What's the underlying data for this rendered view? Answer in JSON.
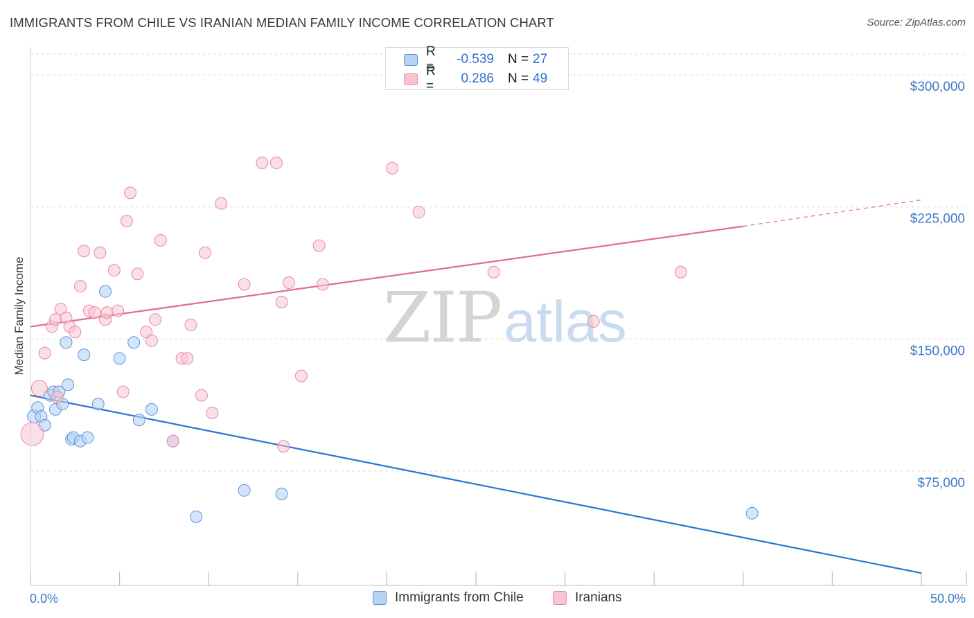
{
  "title": "IMMIGRANTS FROM CHILE VS IRANIAN MEDIAN FAMILY INCOME CORRELATION CHART",
  "source": "Source: ZipAtlas.com",
  "watermark": {
    "zip": "ZIP",
    "atlas": "atlas"
  },
  "legend_top": [
    {
      "r_label": "R =",
      "r_value": "-0.539",
      "n_label": "N =",
      "n_value": "27"
    },
    {
      "r_label": "R =",
      "r_value": "0.286",
      "n_label": "N =",
      "n_value": "49"
    }
  ],
  "colors": {
    "chile_fill": "#b9d3f5",
    "chile_stroke": "#5a93dc",
    "chile_line": "#2a72d5",
    "iran_fill": "#f8c4d3",
    "iran_stroke": "#e8889f",
    "iran_line": "#e06c92",
    "grid": "#d9d9d9",
    "tick_label": "#3a78c9"
  },
  "chart_data": {
    "type": "scatter",
    "title": "IMMIGRANTS FROM CHILE VS IRANIAN MEDIAN FAMILY INCOME CORRELATION CHART",
    "xlabel": "",
    "ylabel": "Median Family Income",
    "xlim": [
      0,
      50
    ],
    "ylim": [
      10000,
      315000
    ],
    "x_tick_labels": [
      "0.0%",
      "50.0%"
    ],
    "y_ticks": [
      75000,
      150000,
      225000,
      300000
    ],
    "y_tick_labels": [
      "$75,000",
      "$150,000",
      "$225,000",
      "$300,000"
    ],
    "grid": "horizontal dashed",
    "legend_position": "bottom-center",
    "series": [
      {
        "name": "Immigrants from Chile",
        "r": -0.539,
        "n": 27,
        "trend": {
          "x0": 0,
          "y0": 118000,
          "x1": 50,
          "y1": 17000
        },
        "points": [
          [
            0.2,
            106000,
            16
          ],
          [
            0.4,
            111000,
            14
          ],
          [
            0.6,
            106000,
            14
          ],
          [
            0.8,
            101000,
            14
          ],
          [
            1.1,
            118000,
            14
          ],
          [
            1.3,
            120000,
            14
          ],
          [
            1.4,
            110000,
            14
          ],
          [
            1.6,
            120000,
            14
          ],
          [
            1.8,
            113000,
            14
          ],
          [
            2.0,
            148000,
            14
          ],
          [
            2.1,
            124000,
            14
          ],
          [
            2.3,
            93000,
            14
          ],
          [
            2.4,
            94000,
            14
          ],
          [
            2.8,
            92000,
            14
          ],
          [
            3.2,
            94000,
            14
          ],
          [
            3.8,
            113000,
            14
          ],
          [
            4.2,
            177000,
            14
          ],
          [
            5.0,
            139000,
            14
          ],
          [
            5.8,
            148000,
            14
          ],
          [
            6.1,
            104000,
            14
          ],
          [
            6.8,
            110000,
            14
          ],
          [
            8.0,
            92000,
            14
          ],
          [
            9.3,
            49000,
            14
          ],
          [
            12.0,
            64000,
            14
          ],
          [
            14.1,
            62000,
            14
          ],
          [
            40.5,
            51000,
            14
          ],
          [
            3.0,
            141000,
            14
          ]
        ]
      },
      {
        "name": "Iranians",
        "r": 0.286,
        "n": 49,
        "trend": {
          "x0": 0,
          "y0": 157000,
          "x1": 40,
          "y1": 214000,
          "dash_x1": 50,
          "dash_y1": 229000
        },
        "points": [
          [
            0.1,
            96000,
            30
          ],
          [
            0.5,
            122000,
            20
          ],
          [
            0.8,
            142000,
            14
          ],
          [
            1.2,
            157000,
            14
          ],
          [
            1.4,
            161000,
            14
          ],
          [
            1.5,
            117000,
            14
          ],
          [
            1.7,
            167000,
            14
          ],
          [
            2.0,
            162000,
            14
          ],
          [
            2.2,
            157000,
            14
          ],
          [
            2.5,
            154000,
            14
          ],
          [
            2.8,
            180000,
            14
          ],
          [
            3.0,
            200000,
            14
          ],
          [
            3.3,
            166000,
            14
          ],
          [
            3.6,
            165000,
            14
          ],
          [
            3.9,
            199000,
            14
          ],
          [
            4.2,
            161000,
            14
          ],
          [
            4.3,
            165000,
            14
          ],
          [
            4.7,
            189000,
            14
          ],
          [
            4.9,
            166000,
            14
          ],
          [
            5.2,
            120000,
            14
          ],
          [
            5.4,
            217000,
            14
          ],
          [
            5.6,
            233000,
            14
          ],
          [
            6.0,
            187000,
            14
          ],
          [
            6.5,
            154000,
            14
          ],
          [
            6.8,
            149000,
            14
          ],
          [
            7.0,
            161000,
            14
          ],
          [
            7.3,
            206000,
            14
          ],
          [
            8.0,
            92000,
            14
          ],
          [
            8.5,
            139000,
            14
          ],
          [
            8.8,
            139000,
            14
          ],
          [
            9.0,
            158000,
            14
          ],
          [
            9.6,
            118000,
            14
          ],
          [
            9.8,
            199000,
            14
          ],
          [
            10.2,
            108000,
            14
          ],
          [
            10.7,
            227000,
            14
          ],
          [
            12.0,
            181000,
            14
          ],
          [
            13.0,
            250000,
            14
          ],
          [
            13.8,
            250000,
            14
          ],
          [
            14.1,
            171000,
            14
          ],
          [
            14.2,
            89000,
            14
          ],
          [
            14.5,
            182000,
            14
          ],
          [
            15.2,
            129000,
            14
          ],
          [
            16.2,
            203000,
            14
          ],
          [
            16.4,
            181000,
            14
          ],
          [
            20.3,
            247000,
            14
          ],
          [
            21.8,
            222000,
            14
          ],
          [
            26.0,
            188000,
            14
          ],
          [
            31.6,
            160000,
            14
          ],
          [
            36.5,
            188000,
            14
          ]
        ]
      }
    ]
  },
  "legend_bottom": [
    "Immigrants from Chile",
    "Iranians"
  ]
}
